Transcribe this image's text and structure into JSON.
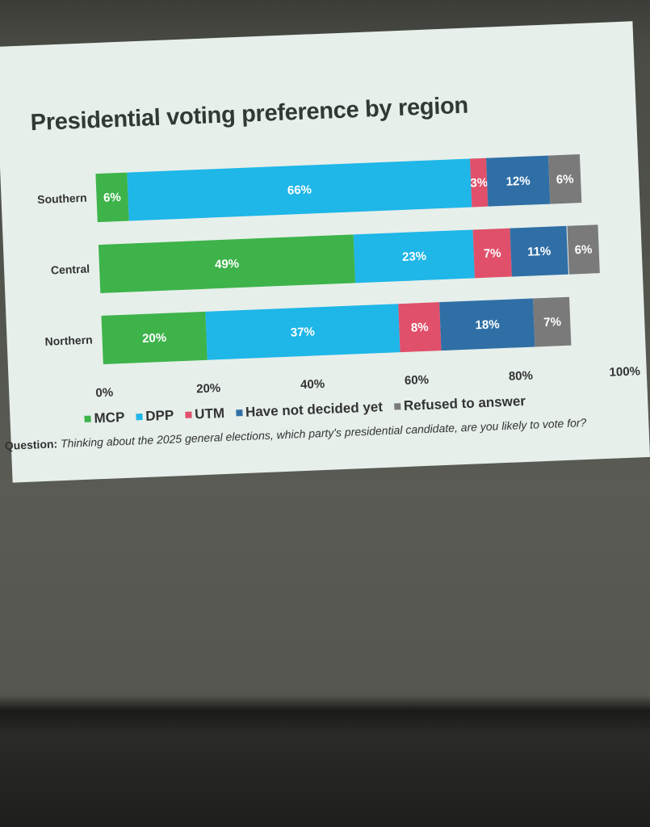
{
  "chart_data": {
    "type": "bar",
    "orientation": "horizontal",
    "stacked": true,
    "title": "Presidential voting preference by region",
    "categories": [
      "Southern",
      "Central",
      "Northern"
    ],
    "series": [
      {
        "name": "MCP",
        "color": "#3db34a",
        "values": [
          6,
          49,
          20
        ]
      },
      {
        "name": "DPP",
        "color": "#1fb6e8",
        "values": [
          66,
          23,
          37
        ]
      },
      {
        "name": "UTM",
        "color": "#e0506a",
        "values": [
          3,
          7,
          8
        ]
      },
      {
        "name": "Have not decided yet",
        "color": "#2f6fa6",
        "values": [
          12,
          11,
          18
        ]
      },
      {
        "name": "Refused to answer",
        "color": "#7a7a7a",
        "values": [
          6,
          6,
          7
        ]
      }
    ],
    "xlim": [
      0,
      100
    ],
    "xticks": [
      "0%",
      "20%",
      "40%",
      "60%",
      "80%",
      "100%"
    ],
    "unit": "%",
    "grid": false,
    "legend_placement": "bottom"
  },
  "question": {
    "label": "Question:",
    "text": "Thinking about the 2025 general elections, which party's presidential candidate, are you likely to vote for?"
  }
}
